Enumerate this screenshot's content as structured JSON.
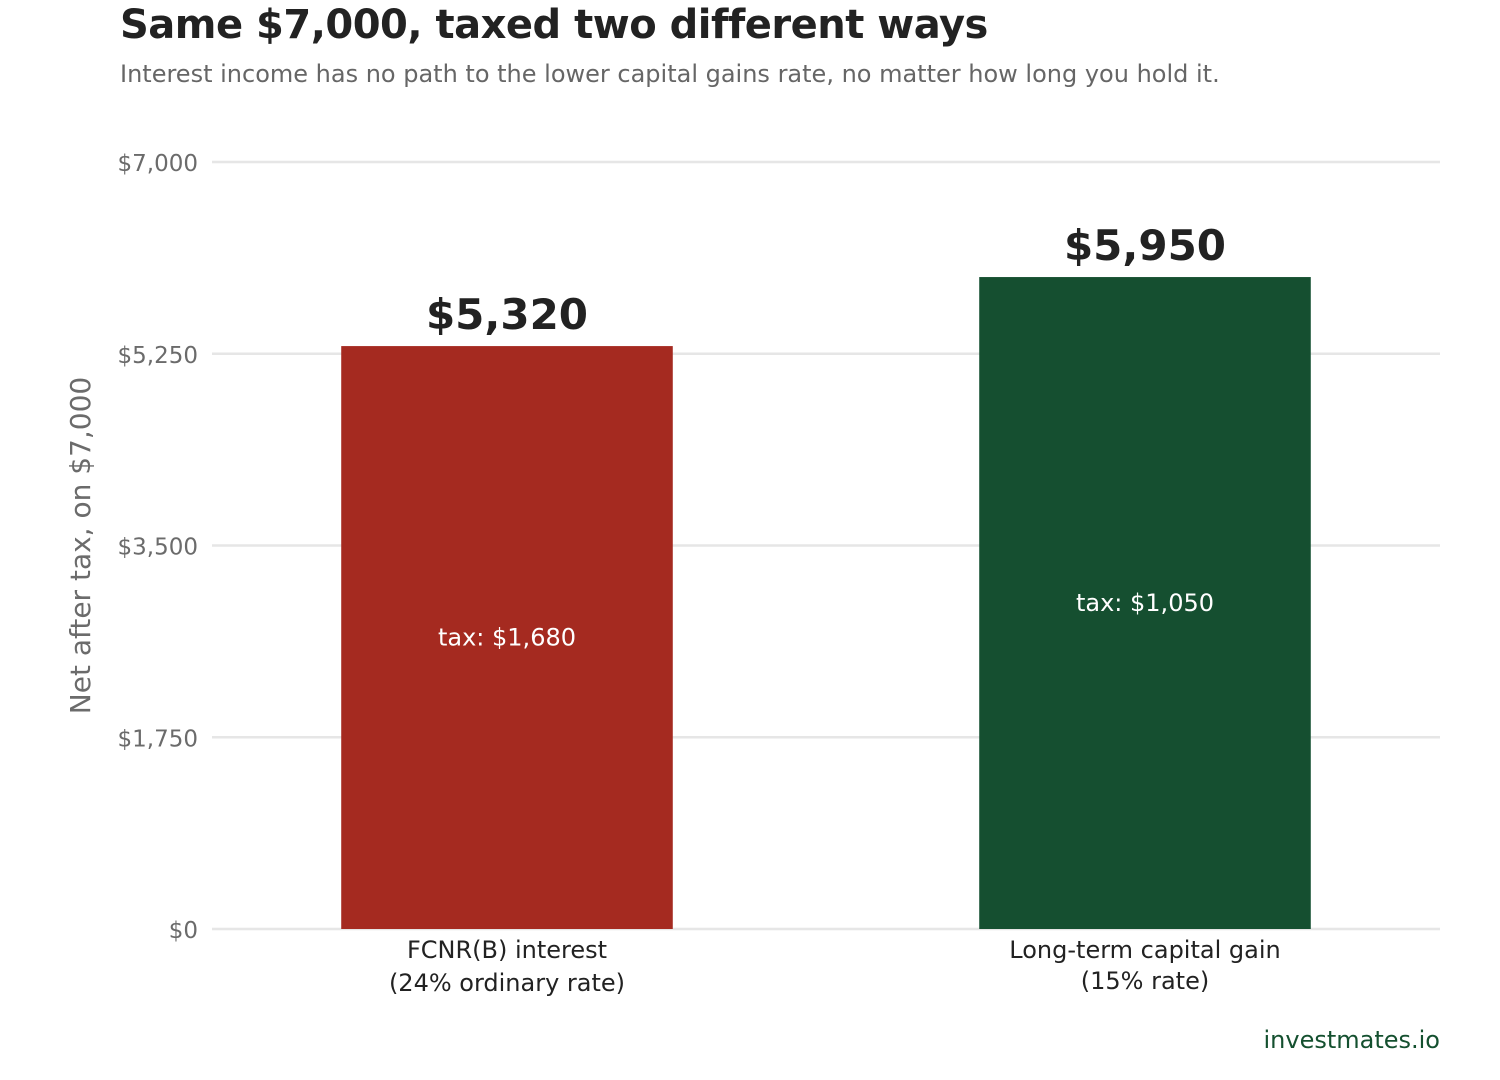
{
  "title": "Same $7,000, taxed two different ways",
  "subtitle": "Interest income has no path to the lower capital gains rate, no matter how long you hold it.",
  "source": "investmates.io",
  "chart_data": {
    "type": "bar",
    "title": "Same $7,000, taxed two different ways",
    "subtitle": "Interest income has no path to the lower capital gains rate, no matter how long you hold it.",
    "xlabel": "",
    "ylabel": "Net after tax, on $7,000",
    "ylim": [
      0,
      7000
    ],
    "yticks": [
      0,
      1750,
      3500,
      5250,
      7000
    ],
    "ytick_labels": [
      "$0",
      "$1,750",
      "$3,500",
      "$5,250",
      "$7,000"
    ],
    "grid": true,
    "categories": [
      [
        "FCNR(B) interest",
        "(24% ordinary rate)"
      ],
      [
        "Long-term capital gain",
        "(15% rate)"
      ]
    ],
    "values": [
      5320,
      5950
    ],
    "value_labels": [
      "$5,320",
      "$5,950"
    ],
    "annotations": [
      "tax: $1,680",
      "tax: $1,050"
    ],
    "colors": [
      "#a52a20",
      "#154f30"
    ]
  }
}
